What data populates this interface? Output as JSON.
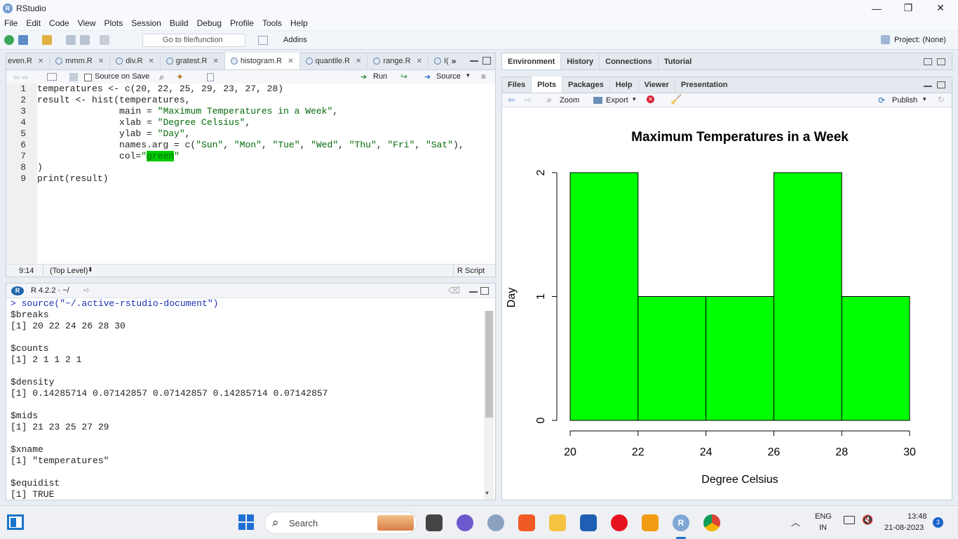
{
  "window": {
    "title": "RStudio",
    "app_icon": "R"
  },
  "menu": [
    "File",
    "Edit",
    "Code",
    "View",
    "Plots",
    "Session",
    "Build",
    "Debug",
    "Profile",
    "Tools",
    "Help"
  ],
  "toolbar": {
    "goto_placeholder": "Go to file/function",
    "addins": "Addins",
    "project": "Project: (None)"
  },
  "editor": {
    "tabs": [
      {
        "label": "even.R"
      },
      {
        "label": "mmm.R"
      },
      {
        "label": "div.R"
      },
      {
        "label": "gratest.R"
      },
      {
        "label": "histogram.R",
        "active": true
      },
      {
        "label": "quantile.R"
      },
      {
        "label": "range.R"
      },
      {
        "label": "I("
      }
    ],
    "source_on_save": "Source on Save",
    "run": "Run",
    "source": "Source",
    "lines": [
      {
        "n": "1",
        "segments": [
          {
            "t": "temperatures <- c(20, 22, 25, 29, 23, 27, 28)"
          }
        ]
      },
      {
        "n": "2",
        "segments": [
          {
            "t": "result <- hist(temperatures,"
          }
        ]
      },
      {
        "n": "3",
        "segments": [
          {
            "t": "               main = "
          },
          {
            "t": "\"Maximum Temperatures in a Week\"",
            "c": "str"
          },
          {
            "t": ","
          }
        ]
      },
      {
        "n": "4",
        "segments": [
          {
            "t": "               xlab = "
          },
          {
            "t": "\"Degree Celsius\"",
            "c": "str"
          },
          {
            "t": ","
          }
        ]
      },
      {
        "n": "5",
        "segments": [
          {
            "t": "               ylab = "
          },
          {
            "t": "\"Day\"",
            "c": "str"
          },
          {
            "t": ","
          }
        ]
      },
      {
        "n": "6",
        "segments": [
          {
            "t": "               names.arg = c("
          },
          {
            "t": "\"Sun\"",
            "c": "str"
          },
          {
            "t": ", "
          },
          {
            "t": "\"Mon\"",
            "c": "str"
          },
          {
            "t": ", "
          },
          {
            "t": "\"Tue\"",
            "c": "str"
          },
          {
            "t": ", "
          },
          {
            "t": "\"Wed\"",
            "c": "str"
          },
          {
            "t": ", "
          },
          {
            "t": "\"Thu\"",
            "c": "str"
          },
          {
            "t": ", "
          },
          {
            "t": "\"Fri\"",
            "c": "str"
          },
          {
            "t": ", "
          },
          {
            "t": "\"Sat\"",
            "c": "str"
          },
          {
            "t": "),"
          }
        ]
      },
      {
        "n": "7",
        "segments": [
          {
            "t": "               col="
          },
          {
            "t": "\"",
            "c": "str"
          },
          {
            "t": "green",
            "c": "hl"
          },
          {
            "t": "\"",
            "c": "str"
          }
        ]
      },
      {
        "n": "8",
        "segments": [
          {
            "t": ")"
          }
        ]
      },
      {
        "n": "9",
        "segments": [
          {
            "t": "print(result)"
          }
        ]
      }
    ],
    "status": {
      "pos": "9:14",
      "scope": "(Top Level)",
      "type": "R Script"
    }
  },
  "console": {
    "header": "R 4.2.2 · ~/",
    "lines": [
      {
        "t": "> source(\"~/.active-rstudio-document\")",
        "c": "cmd"
      },
      {
        "t": "$breaks"
      },
      {
        "t": "[1] 20 22 24 26 28 30"
      },
      {
        "t": ""
      },
      {
        "t": "$counts"
      },
      {
        "t": "[1] 2 1 1 2 1"
      },
      {
        "t": ""
      },
      {
        "t": "$density"
      },
      {
        "t": "[1] 0.14285714 0.07142857 0.07142857 0.14285714 0.07142857"
      },
      {
        "t": ""
      },
      {
        "t": "$mids"
      },
      {
        "t": "[1] 21 23 25 27 29"
      },
      {
        "t": ""
      },
      {
        "t": "$xname"
      },
      {
        "t": "[1] \"temperatures\""
      },
      {
        "t": ""
      },
      {
        "t": "$equidist"
      },
      {
        "t": "[1] TRUE"
      }
    ]
  },
  "env_tabs": [
    "Environment",
    "History",
    "Connections",
    "Tutorial"
  ],
  "plot_tabs": [
    "Files",
    "Plots",
    "Packages",
    "Help",
    "Viewer",
    "Presentation"
  ],
  "plot_toolbar": {
    "zoom": "Zoom",
    "export": "Export",
    "publish": "Publish"
  },
  "chart_data": {
    "type": "bar",
    "title": "Maximum Temperatures in a Week",
    "xlabel": "Degree Celsius",
    "ylabel": "Day",
    "bins": [
      [
        20,
        22
      ],
      [
        22,
        24
      ],
      [
        24,
        26
      ],
      [
        26,
        28
      ],
      [
        28,
        30
      ]
    ],
    "values": [
      2,
      1,
      1,
      2,
      1
    ],
    "xticks": [
      "20",
      "22",
      "24",
      "26",
      "28",
      "30"
    ],
    "yticks": [
      "0",
      "1",
      "2"
    ],
    "xlim": [
      20,
      30
    ],
    "ylim": [
      0,
      2
    ],
    "bar_color": "#00ff00"
  },
  "taskbar": {
    "search": "Search",
    "lang1": "ENG",
    "lang2": "IN",
    "time": "13:48",
    "date": "21-08-2023",
    "badge": "3"
  }
}
